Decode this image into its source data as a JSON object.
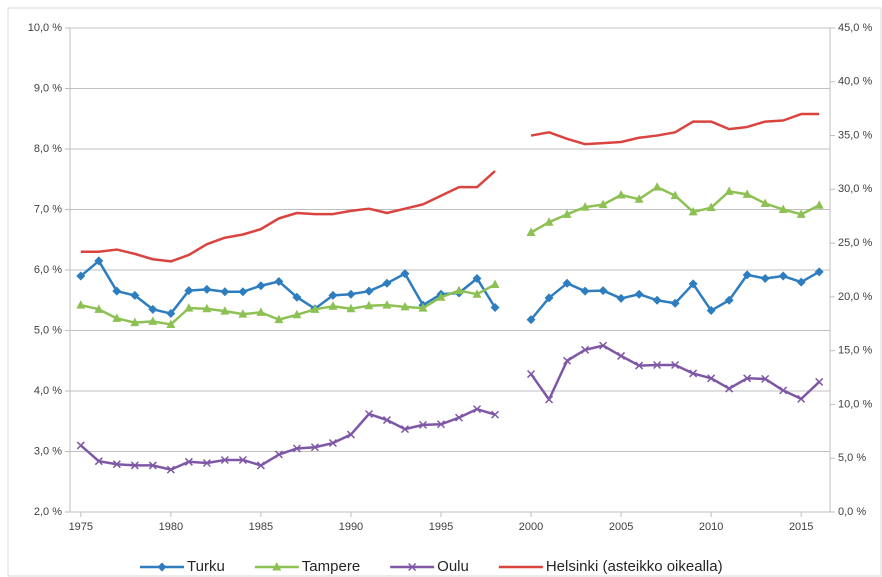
{
  "chart_data": {
    "type": "line",
    "x": [
      1975,
      1976,
      1977,
      1978,
      1979,
      1980,
      1981,
      1982,
      1983,
      1984,
      1985,
      1986,
      1987,
      1988,
      1989,
      1990,
      1991,
      1992,
      1993,
      1994,
      1995,
      1996,
      1997,
      1998,
      1999,
      2000,
      2001,
      2002,
      2003,
      2004,
      2005,
      2006,
      2007,
      2008,
      2009,
      2010,
      2011,
      2012,
      2013,
      2014,
      2015,
      2016
    ],
    "xlim": [
      1974.4,
      2016.6
    ],
    "xticks": [
      1975,
      1980,
      1985,
      1990,
      1995,
      2000,
      2005,
      2010,
      2015
    ],
    "ylim": [
      2,
      10
    ],
    "yticks": [
      {
        "value": 2,
        "label": "2,0 %"
      },
      {
        "value": 3,
        "label": "3,0 %"
      },
      {
        "value": 4,
        "label": "4,0 %"
      },
      {
        "value": 5,
        "label": "5,0 %"
      },
      {
        "value": 6,
        "label": "6,0 %"
      },
      {
        "value": 7,
        "label": "7,0 %"
      },
      {
        "value": 8,
        "label": "8,0 %"
      },
      {
        "value": 9,
        "label": "9,0 %"
      },
      {
        "value": 10,
        "label": "10,0 %"
      }
    ],
    "y2lim": [
      0,
      45
    ],
    "y2ticks": [
      {
        "value": 0,
        "label": "0,0 %"
      },
      {
        "value": 5,
        "label": "5,0 %"
      },
      {
        "value": 10,
        "label": "10,0 %"
      },
      {
        "value": 15,
        "label": "15,0 %"
      },
      {
        "value": 20,
        "label": "20,0 %"
      },
      {
        "value": 25,
        "label": "25,0 %"
      },
      {
        "value": 30,
        "label": "30,0 %"
      },
      {
        "value": 35,
        "label": "35,0 %"
      },
      {
        "value": 40,
        "label": "40,0 %"
      },
      {
        "value": 45,
        "label": "45,0 %"
      }
    ],
    "grid": true,
    "legend": "bottom",
    "series": [
      {
        "name": "Turku",
        "color": "#2e7dbf",
        "marker": "diamond",
        "values": [
          5.9,
          6.15,
          5.65,
          5.58,
          5.35,
          5.28,
          5.66,
          5.68,
          5.64,
          5.64,
          5.74,
          5.81,
          5.55,
          5.36,
          5.58,
          5.6,
          5.65,
          5.78,
          5.94,
          5.42,
          5.6,
          5.62,
          5.86,
          5.38,
          null,
          5.18,
          5.54,
          5.78,
          5.65,
          5.66,
          5.53,
          5.6,
          5.5,
          5.45,
          5.77,
          5.33,
          5.5,
          5.92,
          5.86,
          5.9,
          5.8,
          5.97
        ]
      },
      {
        "name": "Tampere",
        "color": "#8dc153",
        "marker": "triangle",
        "values": [
          5.42,
          5.35,
          5.2,
          5.13,
          5.15,
          5.1,
          5.37,
          5.36,
          5.32,
          5.27,
          5.3,
          5.18,
          5.26,
          5.35,
          5.4,
          5.36,
          5.41,
          5.42,
          5.39,
          5.37,
          5.55,
          5.66,
          5.6,
          5.76,
          null,
          6.62,
          6.79,
          6.92,
          7.04,
          7.08,
          7.24,
          7.17,
          7.37,
          7.23,
          6.96,
          7.03,
          7.3,
          7.25,
          7.1,
          7.0,
          6.92,
          7.07
        ]
      },
      {
        "name": "Oulu",
        "color": "#7e57a6",
        "marker": "x",
        "values": [
          3.1,
          2.84,
          2.79,
          2.77,
          2.77,
          2.7,
          2.83,
          2.81,
          2.86,
          2.86,
          2.77,
          2.95,
          3.05,
          3.07,
          3.14,
          3.28,
          3.62,
          3.52,
          3.37,
          3.44,
          3.45,
          3.56,
          3.7,
          3.61,
          null,
          4.28,
          3.86,
          4.5,
          4.68,
          4.75,
          4.58,
          4.42,
          4.43,
          4.43,
          4.29,
          4.21,
          4.04,
          4.21,
          4.2,
          4.01,
          3.87,
          4.15
        ]
      },
      {
        "name": "Helsinki (asteikko oikealla)",
        "color": "#d9443f",
        "marker": "none",
        "axis": "y2",
        "values": [
          24.2,
          24.2,
          24.4,
          24.0,
          23.5,
          23.3,
          23.9,
          24.9,
          25.5,
          25.8,
          26.3,
          27.3,
          27.8,
          27.7,
          27.7,
          28.0,
          28.2,
          27.8,
          28.2,
          28.6,
          29.4,
          30.2,
          30.2,
          31.7,
          null,
          35.0,
          35.3,
          34.7,
          34.2,
          34.3,
          34.4,
          34.8,
          35.0,
          35.3,
          36.3,
          36.3,
          35.6,
          35.8,
          36.3,
          36.4,
          37.0,
          37.0
        ]
      }
    ]
  }
}
